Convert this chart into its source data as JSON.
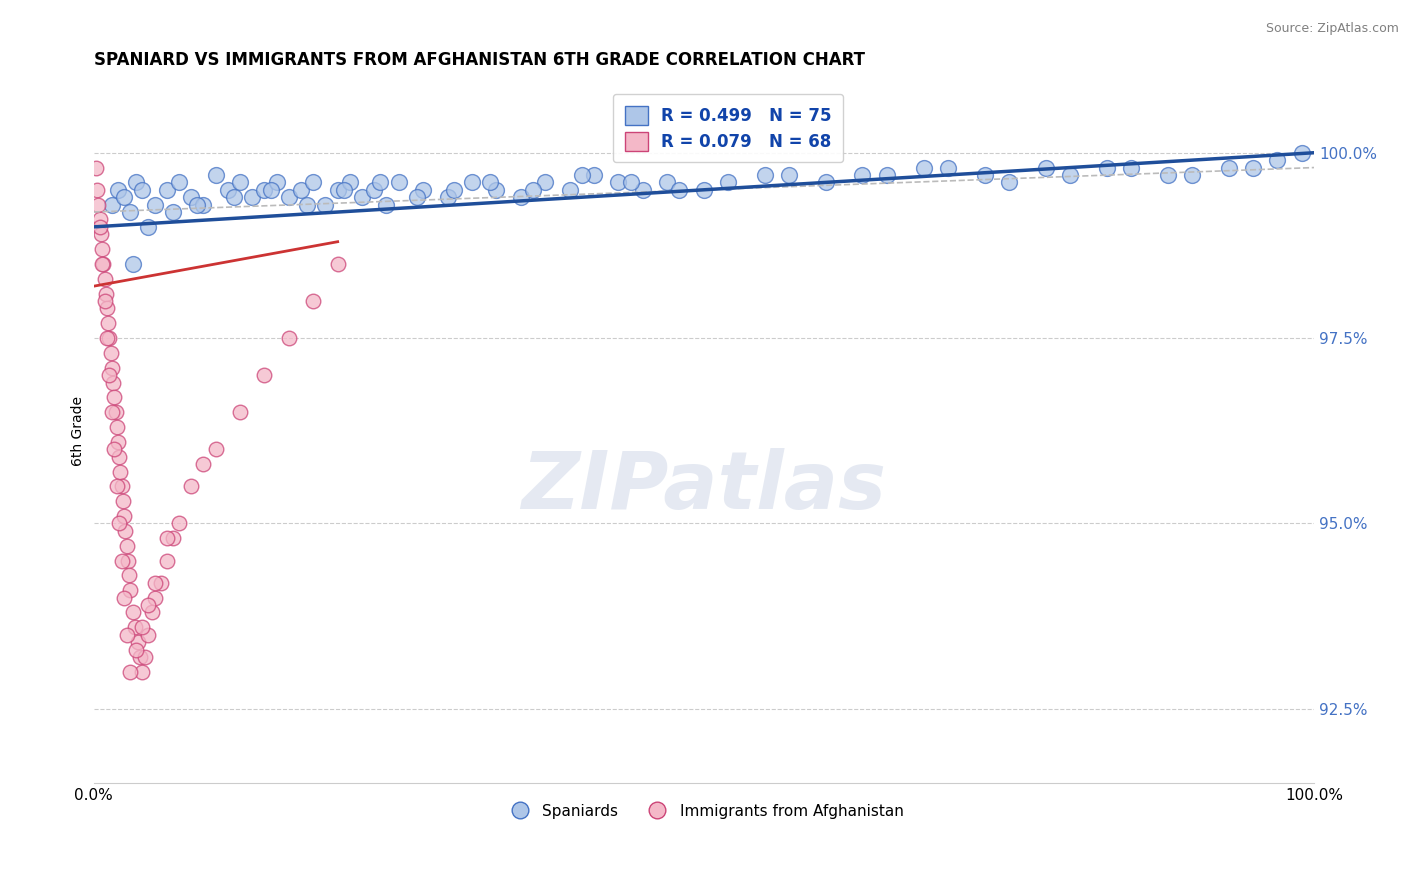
{
  "title": "SPANIARD VS IMMIGRANTS FROM AFGHANISTAN 6TH GRADE CORRELATION CHART",
  "source": "Source: ZipAtlas.com",
  "ylabel": "6th Grade",
  "ytick_labels": [
    "92.5%",
    "95.0%",
    "97.5%",
    "100.0%"
  ],
  "ytick_values": [
    92.5,
    95.0,
    97.5,
    100.0
  ],
  "ylim": [
    91.5,
    101.0
  ],
  "xlim": [
    0.0,
    100.0
  ],
  "legend_blue_r": "R = 0.499",
  "legend_blue_n": "N = 75",
  "legend_pink_r": "R = 0.079",
  "legend_pink_n": "N = 68",
  "blue_fill_color": "#AEC6E8",
  "blue_edge_color": "#4472C4",
  "pink_fill_color": "#F4B8C8",
  "pink_edge_color": "#CC4477",
  "blue_line_color": "#1F4E9A",
  "pink_line_color": "#CC3333",
  "gray_dash_color": "#BBBBBB",
  "watermark": "ZIPatlas",
  "blue_scatter_x": [
    1.5,
    2.0,
    2.5,
    3.0,
    3.5,
    4.0,
    5.0,
    6.0,
    7.0,
    8.0,
    9.0,
    10.0,
    11.0,
    12.0,
    13.0,
    14.0,
    15.0,
    16.0,
    17.0,
    18.0,
    19.0,
    20.0,
    21.0,
    22.0,
    23.0,
    24.0,
    25.0,
    27.0,
    29.0,
    31.0,
    33.0,
    35.0,
    37.0,
    39.0,
    41.0,
    43.0,
    45.0,
    47.0,
    50.0,
    55.0,
    60.0,
    65.0,
    70.0,
    75.0,
    80.0,
    85.0,
    90.0,
    95.0,
    97.0,
    99.0,
    3.2,
    4.5,
    6.5,
    8.5,
    11.5,
    14.5,
    17.5,
    20.5,
    23.5,
    26.5,
    29.5,
    32.5,
    36.0,
    40.0,
    44.0,
    48.0,
    52.0,
    57.0,
    63.0,
    68.0,
    73.0,
    78.0,
    83.0,
    88.0,
    93.0
  ],
  "blue_scatter_y": [
    99.3,
    99.5,
    99.4,
    99.2,
    99.6,
    99.5,
    99.3,
    99.5,
    99.6,
    99.4,
    99.3,
    99.7,
    99.5,
    99.6,
    99.4,
    99.5,
    99.6,
    99.4,
    99.5,
    99.6,
    99.3,
    99.5,
    99.6,
    99.4,
    99.5,
    99.3,
    99.6,
    99.5,
    99.4,
    99.6,
    99.5,
    99.4,
    99.6,
    99.5,
    99.7,
    99.6,
    99.5,
    99.6,
    99.5,
    99.7,
    99.6,
    99.7,
    99.8,
    99.6,
    99.7,
    99.8,
    99.7,
    99.8,
    99.9,
    100.0,
    98.5,
    99.0,
    99.2,
    99.3,
    99.4,
    99.5,
    99.3,
    99.5,
    99.6,
    99.4,
    99.5,
    99.6,
    99.5,
    99.7,
    99.6,
    99.5,
    99.6,
    99.7,
    99.7,
    99.8,
    99.7,
    99.8,
    99.8,
    99.7,
    99.8
  ],
  "pink_scatter_x": [
    0.2,
    0.3,
    0.4,
    0.5,
    0.6,
    0.7,
    0.8,
    0.9,
    1.0,
    1.1,
    1.2,
    1.3,
    1.4,
    1.5,
    1.6,
    1.7,
    1.8,
    1.9,
    2.0,
    2.1,
    2.2,
    2.3,
    2.4,
    2.5,
    2.6,
    2.7,
    2.8,
    2.9,
    3.0,
    3.2,
    3.4,
    3.6,
    3.8,
    4.0,
    4.2,
    4.5,
    4.8,
    5.0,
    5.5,
    6.0,
    6.5,
    7.0,
    8.0,
    9.0,
    10.0,
    12.0,
    14.0,
    16.0,
    18.0,
    20.0,
    0.5,
    0.7,
    0.9,
    1.1,
    1.3,
    1.5,
    1.7,
    1.9,
    2.1,
    2.3,
    2.5,
    2.7,
    3.0,
    3.5,
    4.0,
    4.5,
    5.0,
    6.0
  ],
  "pink_scatter_y": [
    99.8,
    99.5,
    99.3,
    99.1,
    98.9,
    98.7,
    98.5,
    98.3,
    98.1,
    97.9,
    97.7,
    97.5,
    97.3,
    97.1,
    96.9,
    96.7,
    96.5,
    96.3,
    96.1,
    95.9,
    95.7,
    95.5,
    95.3,
    95.1,
    94.9,
    94.7,
    94.5,
    94.3,
    94.1,
    93.8,
    93.6,
    93.4,
    93.2,
    93.0,
    93.2,
    93.5,
    93.8,
    94.0,
    94.2,
    94.5,
    94.8,
    95.0,
    95.5,
    95.8,
    96.0,
    96.5,
    97.0,
    97.5,
    98.0,
    98.5,
    99.0,
    98.5,
    98.0,
    97.5,
    97.0,
    96.5,
    96.0,
    95.5,
    95.0,
    94.5,
    94.0,
    93.5,
    93.0,
    93.3,
    93.6,
    93.9,
    94.2,
    94.8
  ]
}
